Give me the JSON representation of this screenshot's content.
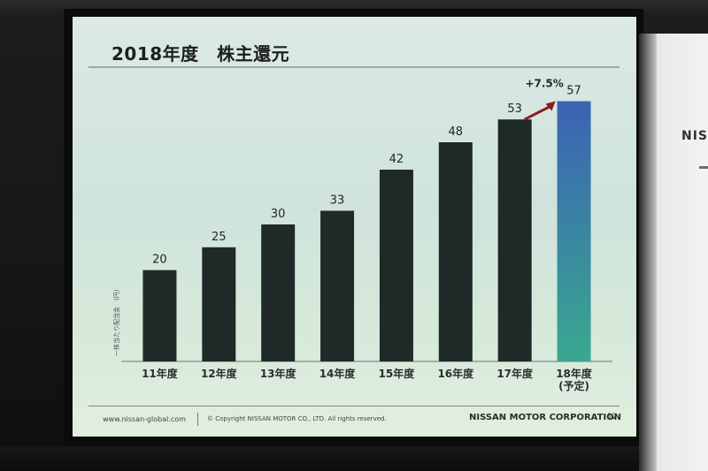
{
  "slide": {
    "title": "2018年度　株主還元",
    "footer_url": "www.nissan-global.com",
    "footer_copyright": "© Copyright NISSAN MOTOR CO., LTD. All rights reserved.",
    "footer_company": "NISSAN MOTOR CORPORATION",
    "page_number": "12"
  },
  "background": {
    "signage_text": "NISS"
  },
  "chart_data": {
    "type": "bar",
    "title": "",
    "ylabel": "一株当たり配当金　(円)",
    "xlabel": "",
    "categories": [
      "11年度",
      "12年度",
      "13年度",
      "14年度",
      "15年度",
      "16年度",
      "17年度",
      "18年度\n(予定)"
    ],
    "values": [
      20,
      25,
      30,
      33,
      42,
      48,
      53,
      57
    ],
    "value_labels": [
      "20",
      "25",
      "30",
      "33",
      "42",
      "48",
      "53",
      "57"
    ],
    "ylim": [
      0,
      60
    ],
    "grid": false,
    "legend": "none",
    "annotation": "+7.5%",
    "colors": {
      "bar": "#1f2a28",
      "forecast_bar_top": "#3b63b3",
      "forecast_bar_bottom": "#3aa88f",
      "arrow": "#8b1e1e"
    }
  }
}
